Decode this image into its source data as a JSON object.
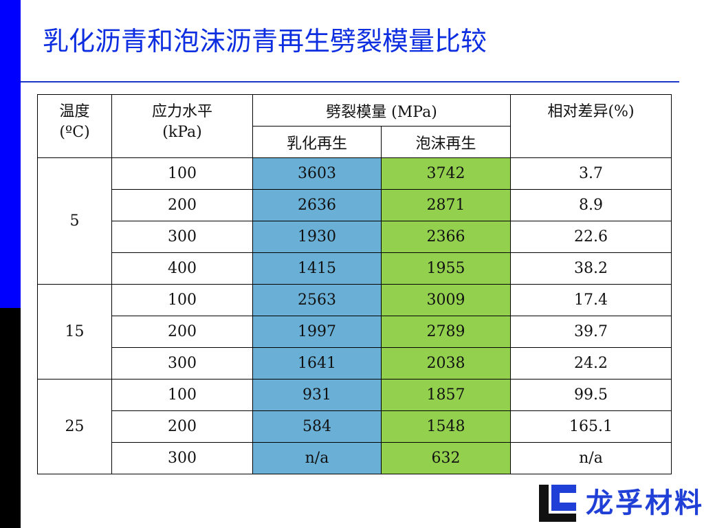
{
  "slide": {
    "title": "乳化沥青和泡沫沥青再生劈裂模量比较",
    "colors": {
      "accent_blue": "#0000ff",
      "title_blue": "#0d2ee0",
      "emulsion_cell": "#6aafd6",
      "foam_cell": "#92d04e"
    }
  },
  "table": {
    "headers": {
      "temperature": "温度\n(ºC)",
      "stress": "应力水平\n(kPa)",
      "modulus": "劈裂模量 (MPa)",
      "emulsion": "乳化再生",
      "foam": "泡沫再生",
      "difference": "相对差异(%)"
    },
    "groups": [
      {
        "temperature": "5",
        "rows": [
          {
            "stress": "100",
            "emulsion": "3603",
            "foam": "3742",
            "diff": "3.7"
          },
          {
            "stress": "200",
            "emulsion": "2636",
            "foam": "2871",
            "diff": "8.9"
          },
          {
            "stress": "300",
            "emulsion": "1930",
            "foam": "2366",
            "diff": "22.6"
          },
          {
            "stress": "400",
            "emulsion": "1415",
            "foam": "1955",
            "diff": "38.2"
          }
        ]
      },
      {
        "temperature": "15",
        "rows": [
          {
            "stress": "100",
            "emulsion": "2563",
            "foam": "3009",
            "diff": "17.4"
          },
          {
            "stress": "200",
            "emulsion": "1997",
            "foam": "2789",
            "diff": "39.7"
          },
          {
            "stress": "300",
            "emulsion": "1641",
            "foam": "2038",
            "diff": "24.2"
          }
        ]
      },
      {
        "temperature": "25",
        "rows": [
          {
            "stress": "100",
            "emulsion": "931",
            "foam": "1857",
            "diff": "99.5"
          },
          {
            "stress": "200",
            "emulsion": "584",
            "foam": "1548",
            "diff": "165.1"
          },
          {
            "stress": "300",
            "emulsion": "n/a",
            "foam": "632",
            "diff": "n/a"
          }
        ]
      }
    ]
  },
  "logo": {
    "text": "龙孚材料",
    "icon": "company-logo-mark"
  }
}
